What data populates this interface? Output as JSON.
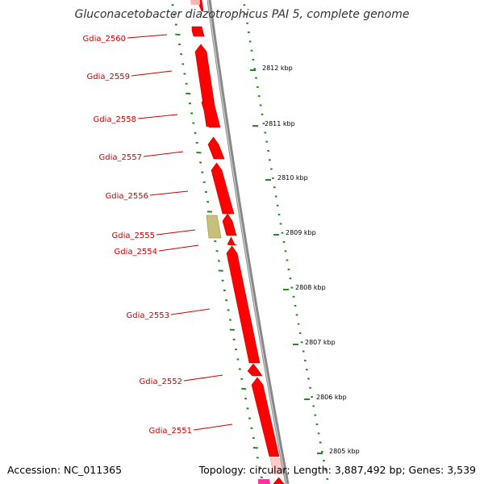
{
  "title": "Gluconacetobacter diazotrophicus PAI 5, complete genome",
  "footer": {
    "accession": "Accession: NC_011365",
    "summary": "Topology: circular; Length: 3,887,492 bp; Genes: 3,539"
  },
  "colors": {
    "gene": "#ff0000",
    "gene_label": "#cc0000",
    "pseudo_gene": "#c8bf7a",
    "rna_gene": "#ff3399",
    "backbone": "#888888",
    "tick": "#228b22"
  },
  "genes": [
    {
      "label": "Gdia_2560"
    },
    {
      "label": "Gdia_2559"
    },
    {
      "label": "Gdia_2558"
    },
    {
      "label": "Gdia_2557"
    },
    {
      "label": "Gdia_2556"
    },
    {
      "label": "Gdia_2555"
    },
    {
      "label": "Gdia_2554"
    },
    {
      "label": "Gdia_2553"
    },
    {
      "label": "Gdia_2552"
    },
    {
      "label": "Gdia_2551"
    }
  ],
  "scale_labels": [
    {
      "text": "2812 kbp"
    },
    {
      "text": "2811 kbp"
    },
    {
      "text": "2810 kbp"
    },
    {
      "text": "2809 kbp"
    },
    {
      "text": "2808 kbp"
    },
    {
      "text": "2807 kbp"
    },
    {
      "text": "2806 kbp"
    },
    {
      "text": "2805 kbp"
    }
  ]
}
